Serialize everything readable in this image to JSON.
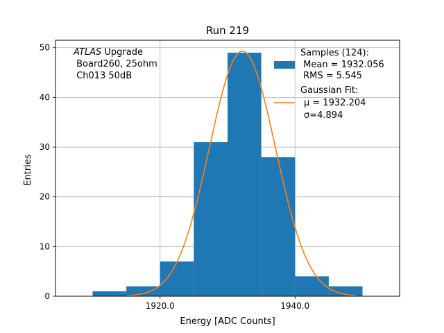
{
  "chart_data": {
    "type": "bar",
    "title": "Run 219",
    "xlabel": "Energy [ADC Counts]",
    "ylabel": "Entries",
    "xlim": [
      1904.5,
      1955.5
    ],
    "ylim": [
      0,
      51.5
    ],
    "x_ticks": [
      1920.0,
      1940.0
    ],
    "x_tick_labels": [
      "1920.0",
      "1940.0"
    ],
    "y_ticks": [
      0,
      10,
      20,
      30,
      40,
      50
    ],
    "y_tick_labels": [
      "0",
      "10",
      "20",
      "30",
      "40",
      "50"
    ],
    "grid": true,
    "bins": [
      {
        "x0": 1910,
        "x1": 1915,
        "value": 1
      },
      {
        "x0": 1915,
        "x1": 1920,
        "value": 2
      },
      {
        "x0": 1920,
        "x1": 1925,
        "value": 7
      },
      {
        "x0": 1925,
        "x1": 1930,
        "value": 31
      },
      {
        "x0": 1930,
        "x1": 1935,
        "value": 49
      },
      {
        "x0": 1935,
        "x1": 1940,
        "value": 28
      },
      {
        "x0": 1940,
        "x1": 1945,
        "value": 4
      },
      {
        "x0": 1945,
        "x1": 1950,
        "value": 2
      }
    ],
    "fit": {
      "mu": 1932.204,
      "sigma": 4.894,
      "amplitude": 49.3,
      "x_range": [
        1915,
        1949
      ]
    },
    "colors": {
      "histogram": "#1f77b4",
      "fit": "#ff7f0e",
      "grid": "#b0b0b0"
    },
    "annotation_lines": [
      "ATLAS Upgrade",
      " Board260, 25ohm",
      " Ch013 50dB"
    ],
    "legend": {
      "placement": "top-right",
      "samples_lines": [
        "Samples (124):",
        " Mean = 1932.056",
        " RMS = 5.545"
      ],
      "fit_lines": [
        "Gaussian Fit:",
        "μ = 1932.204",
        "σ=4.894"
      ]
    }
  }
}
